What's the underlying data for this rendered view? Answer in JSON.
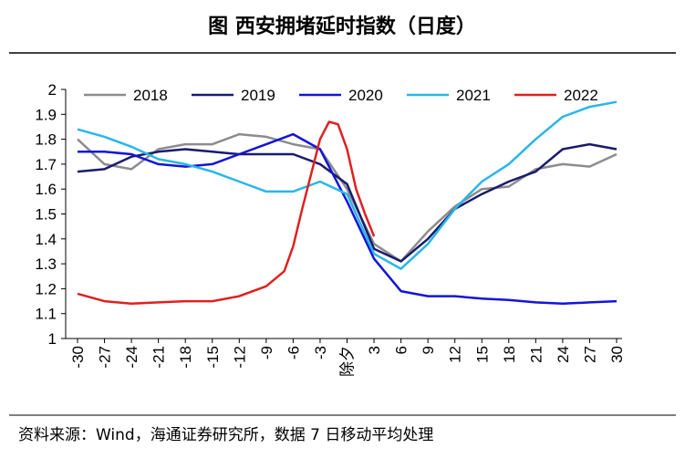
{
  "chart_data": {
    "type": "line",
    "title": "图  西安拥堵延时指数（日度）",
    "source": "资料来源：Wind，海通证券研究所，数据 7 日移动平均处理",
    "x": [
      -30,
      -27,
      -24,
      -21,
      -18,
      -15,
      -12,
      -9,
      -6,
      -3,
      0,
      3,
      6,
      9,
      12,
      15,
      18,
      21,
      24,
      27,
      30
    ],
    "xlim": [
      -30,
      30
    ],
    "xticks": [
      -30,
      -27,
      -24,
      -21,
      -18,
      -15,
      -12,
      -9,
      -6,
      -3,
      {
        "value": 0,
        "label": "除夕"
      },
      3,
      6,
      9,
      12,
      15,
      18,
      21,
      24,
      27,
      30
    ],
    "ylim": [
      1,
      2
    ],
    "yticks": [
      1,
      1.1,
      1.2,
      1.3,
      1.4,
      1.5,
      1.6,
      1.7,
      1.8,
      1.9,
      2
    ],
    "legend": "top",
    "series": [
      {
        "name": "2018",
        "color": "#8c8c8c",
        "values": [
          1.8,
          1.7,
          1.68,
          1.76,
          1.78,
          1.78,
          1.82,
          1.81,
          1.78,
          1.76,
          1.6,
          1.38,
          1.31,
          1.43,
          1.53,
          1.6,
          1.61,
          1.68,
          1.7,
          1.69,
          1.74
        ]
      },
      {
        "name": "2019",
        "color": "#1a1a6e",
        "values": [
          1.67,
          1.68,
          1.73,
          1.75,
          1.76,
          1.75,
          1.74,
          1.74,
          1.74,
          1.7,
          1.62,
          1.36,
          1.31,
          1.4,
          1.52,
          1.58,
          1.63,
          1.67,
          1.76,
          1.78,
          1.76
        ]
      },
      {
        "name": "2020",
        "color": "#1414d8",
        "values": [
          1.75,
          1.75,
          1.74,
          1.7,
          1.69,
          1.7,
          1.74,
          1.78,
          1.82,
          1.76,
          1.55,
          1.32,
          1.19,
          1.17,
          1.17,
          1.16,
          1.155,
          1.145,
          1.14,
          1.145,
          1.15
        ]
      },
      {
        "name": "2021",
        "color": "#29b6e8",
        "values": [
          1.84,
          1.81,
          1.77,
          1.72,
          1.7,
          1.67,
          1.63,
          1.59,
          1.59,
          1.63,
          1.58,
          1.34,
          1.28,
          1.38,
          1.52,
          1.63,
          1.7,
          1.8,
          1.89,
          1.93,
          1.95
        ]
      },
      {
        "name": "2022",
        "color": "#e02020",
        "x": [
          -30,
          -27,
          -24,
          -21,
          -18,
          -15,
          -12,
          -9,
          -7,
          -6,
          -5,
          -4,
          -3,
          -2,
          -1,
          0,
          1,
          2,
          3
        ],
        "values": [
          1.18,
          1.15,
          1.14,
          1.145,
          1.15,
          1.15,
          1.17,
          1.21,
          1.27,
          1.37,
          1.52,
          1.66,
          1.8,
          1.87,
          1.86,
          1.76,
          1.6,
          1.5,
          1.41
        ]
      }
    ]
  }
}
